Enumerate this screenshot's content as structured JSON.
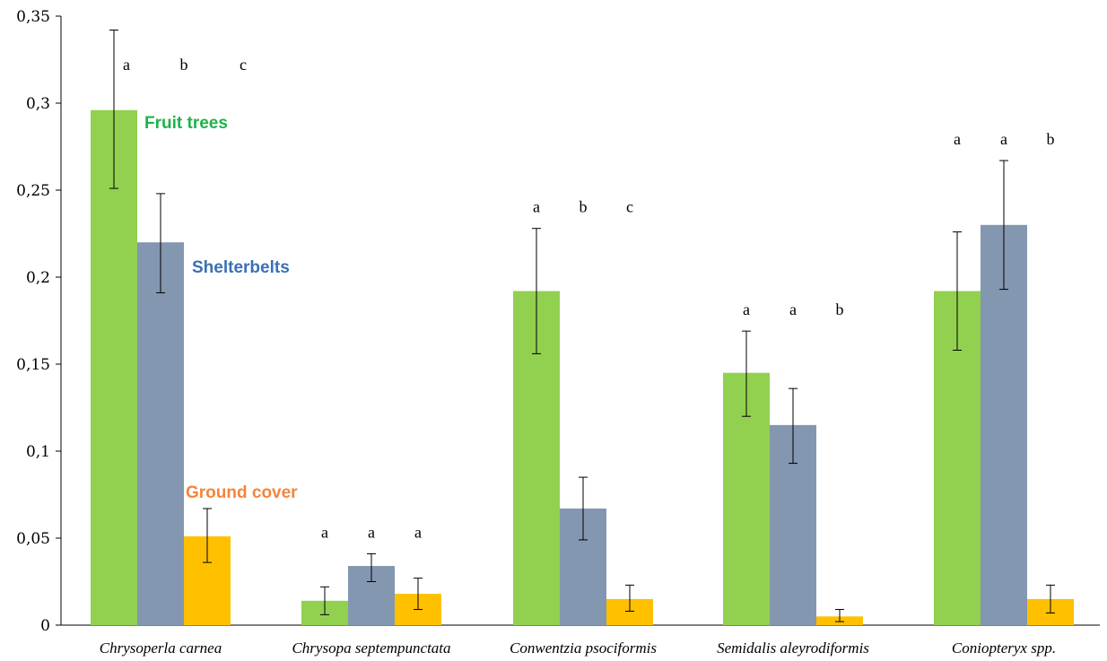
{
  "chart_data": {
    "type": "bar",
    "categories": [
      "Chrysoperla carnea",
      "Chrysopa septempunctata",
      "Conwentzia psociformis",
      "Semidalis aleyrodiformis",
      "Coniopteryx spp."
    ],
    "series": [
      {
        "name": "Fruit trees",
        "color": "#92d050",
        "label_color": "#1fb24a",
        "values": [
          0.296,
          0.014,
          0.192,
          0.145,
          0.192
        ],
        "error_low": [
          0.251,
          0.006,
          0.156,
          0.12,
          0.158
        ],
        "error_high": [
          0.342,
          0.022,
          0.228,
          0.169,
          0.226
        ]
      },
      {
        "name": "Shelterbelts",
        "color": "#8497b0",
        "label_color": "#3b6fb6",
        "values": [
          0.22,
          0.034,
          0.067,
          0.115,
          0.23
        ],
        "error_low": [
          0.191,
          0.025,
          0.049,
          0.093,
          0.193
        ],
        "error_high": [
          0.248,
          0.041,
          0.085,
          0.136,
          0.267
        ]
      },
      {
        "name": "Ground cover",
        "color": "#ffc000",
        "label_color": "#f5843b",
        "values": [
          0.051,
          0.018,
          0.015,
          0.005,
          0.015
        ],
        "error_low": [
          0.036,
          0.009,
          0.008,
          0.002,
          0.007
        ],
        "error_high": [
          0.067,
          0.027,
          0.023,
          0.009,
          0.023
        ]
      }
    ],
    "significance_letters": [
      [
        "a",
        "b",
        "c"
      ],
      [
        "a",
        "a",
        "a"
      ],
      [
        "a",
        "b",
        "c"
      ],
      [
        "a",
        "a",
        "b"
      ],
      [
        "a",
        "a",
        "b"
      ]
    ],
    "yticks": [
      "0",
      "0,05",
      "0,1",
      "0,15",
      "0,2",
      "0,25",
      "0,3",
      "0,35"
    ],
    "ylim": [
      0,
      0.35
    ],
    "grid": false,
    "legend": "inline labels next to first group"
  }
}
